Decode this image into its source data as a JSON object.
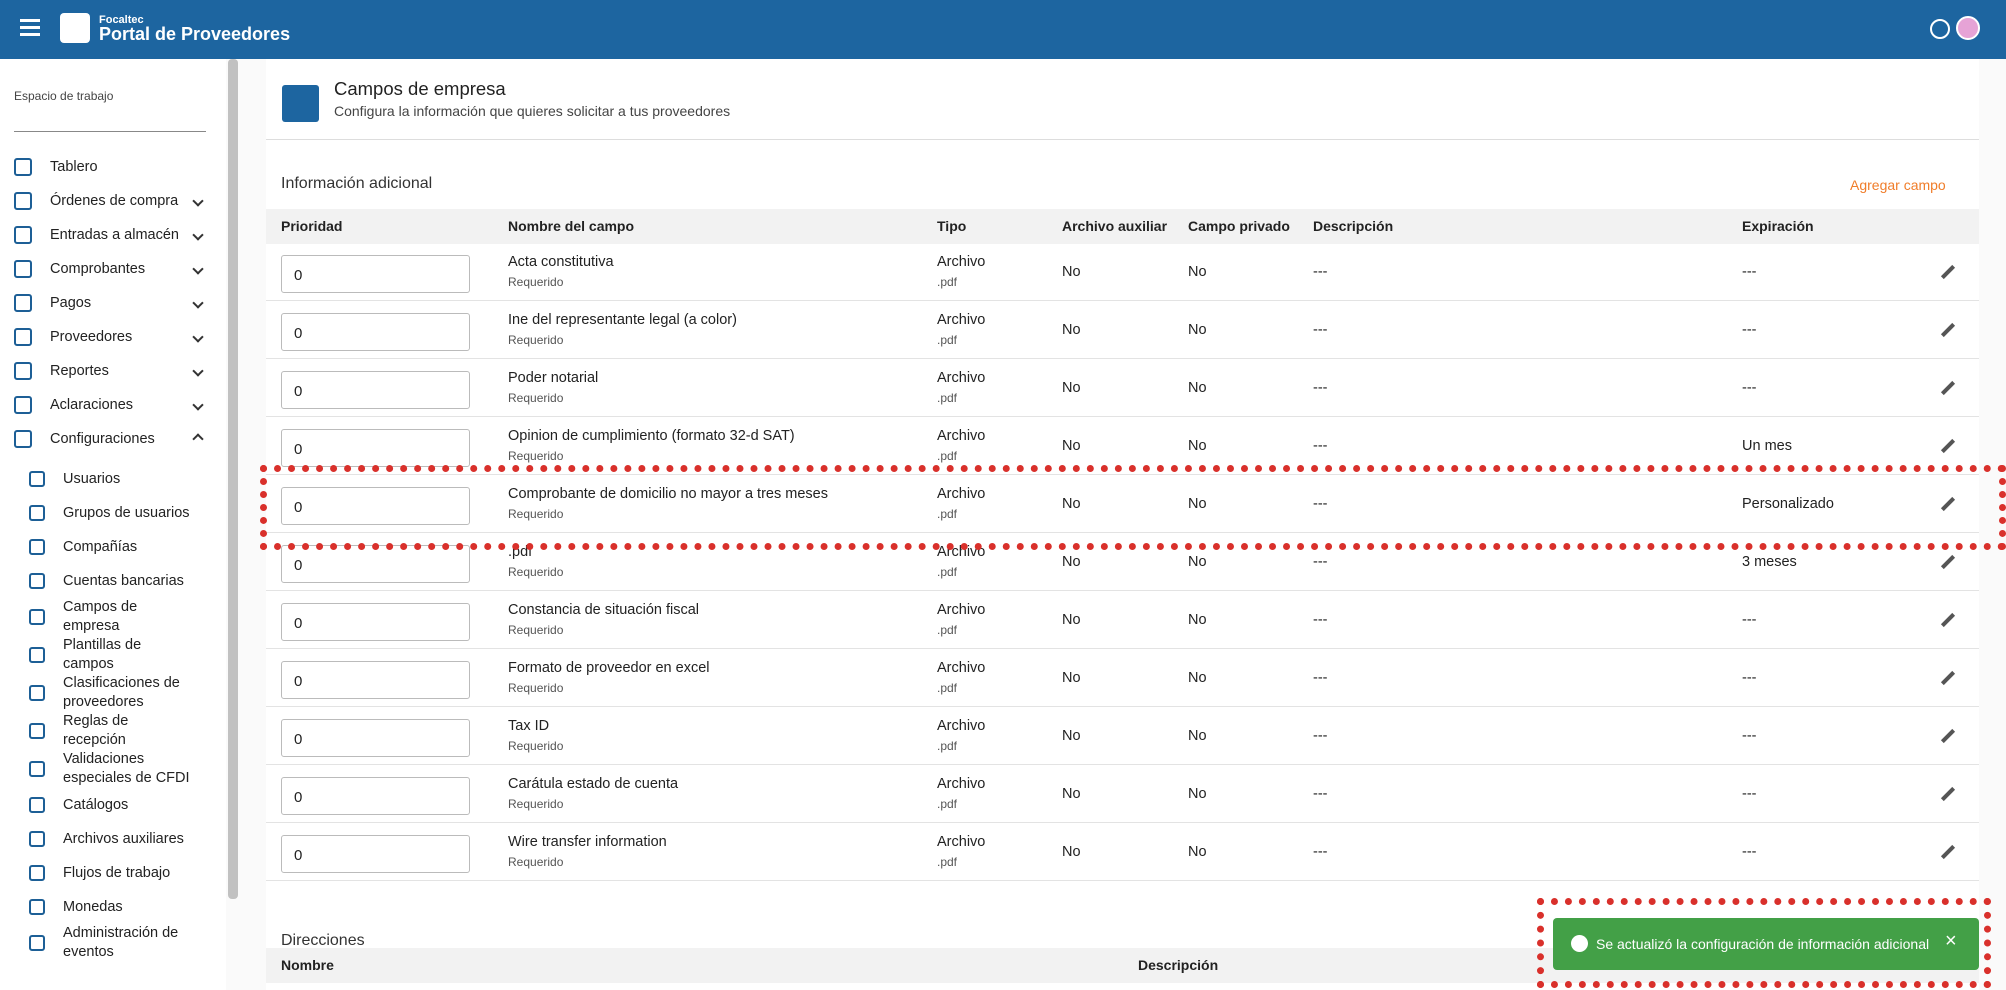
{
  "header": {
    "brand_small": "Focaltec",
    "brand": "Portal de Proveedores"
  },
  "sidebar": {
    "workspace_label": "Espacio de trabajo",
    "items": [
      {
        "label": "Tablero",
        "has_children": false
      },
      {
        "label": "Órdenes de compra",
        "has_children": true
      },
      {
        "label": "Entradas a almacén",
        "has_children": true
      },
      {
        "label": "Comprobantes",
        "has_children": true
      },
      {
        "label": "Pagos",
        "has_children": true
      },
      {
        "label": "Proveedores",
        "has_children": true
      },
      {
        "label": "Reportes",
        "has_children": true
      },
      {
        "label": "Aclaraciones",
        "has_children": true
      },
      {
        "label": "Configuraciones",
        "has_children": true,
        "expanded": true
      }
    ],
    "subitems": [
      "Usuarios",
      "Grupos de usuarios",
      "Compañías",
      "Cuentas bancarias",
      "Campos de empresa",
      "Plantillas de campos",
      "Clasificaciones de proveedores",
      "Reglas de recepción",
      "Validaciones especiales de CFDI",
      "Catálogos",
      "Archivos auxiliares",
      "Flujos de trabajo",
      "Monedas",
      "Administración de eventos"
    ]
  },
  "page": {
    "title": "Campos de empresa",
    "subtitle": "Configura la información que quieres solicitar a tus proveedores"
  },
  "section": {
    "title": "Información adicional",
    "add_button": "Agregar campo",
    "columns": [
      "Prioridad",
      "Nombre del campo",
      "Tipo",
      "Archivo auxiliar",
      "Campo privado",
      "Descripción",
      "Expiración"
    ],
    "rows": [
      {
        "priority": "0",
        "name": "Acta constitutiva",
        "required": "Requerido",
        "type": "Archivo",
        "ext": ".pdf",
        "aux": "No",
        "private": "No",
        "description": "---",
        "expiration": "---"
      },
      {
        "priority": "0",
        "name": "Ine del representante legal (a color)",
        "required": "Requerido",
        "type": "Archivo",
        "ext": ".pdf",
        "aux": "No",
        "private": "No",
        "description": "---",
        "expiration": "---"
      },
      {
        "priority": "0",
        "name": "Poder notarial",
        "required": "Requerido",
        "type": "Archivo",
        "ext": ".pdf",
        "aux": "No",
        "private": "No",
        "description": "---",
        "expiration": "---"
      },
      {
        "priority": "0",
        "name": "Opinion de cumplimiento (formato 32-d SAT)",
        "required": "Requerido",
        "type": "Archivo",
        "ext": ".pdf",
        "aux": "No",
        "private": "No",
        "description": "---",
        "expiration": "Un mes"
      },
      {
        "priority": "0",
        "name": "Comprobante de domicilio no mayor a tres meses",
        "required": "Requerido",
        "type": "Archivo",
        "ext": ".pdf",
        "aux": "No",
        "private": "No",
        "description": "---",
        "expiration": "Personalizado"
      },
      {
        "priority": "0",
        "name": ".pdf",
        "required": "Requerido",
        "type": "Archivo",
        "ext": ".pdf",
        "aux": "No",
        "private": "No",
        "description": "---",
        "expiration": "3 meses"
      },
      {
        "priority": "0",
        "name": "Constancia de situación fiscal",
        "required": "Requerido",
        "type": "Archivo",
        "ext": ".pdf",
        "aux": "No",
        "private": "No",
        "description": "---",
        "expiration": "---"
      },
      {
        "priority": "0",
        "name": "Formato de proveedor en excel",
        "required": "Requerido",
        "type": "Archivo",
        "ext": ".pdf",
        "aux": "No",
        "private": "No",
        "description": "---",
        "expiration": "---"
      },
      {
        "priority": "0",
        "name": "Tax ID",
        "required": "Requerido",
        "type": "Archivo",
        "ext": ".pdf",
        "aux": "No",
        "private": "No",
        "description": "---",
        "expiration": "---"
      },
      {
        "priority": "0",
        "name": "Carátula estado de cuenta",
        "required": "Requerido",
        "type": "Archivo",
        "ext": ".pdf",
        "aux": "No",
        "private": "No",
        "description": "---",
        "expiration": "---"
      },
      {
        "priority": "0",
        "name": "Wire transfer information",
        "required": "Requerido",
        "type": "Archivo",
        "ext": ".pdf",
        "aux": "No",
        "private": "No",
        "description": "---",
        "expiration": "---"
      }
    ]
  },
  "addresses": {
    "title": "Direcciones",
    "columns": [
      "Nombre",
      "Descripción"
    ]
  },
  "toast": {
    "message": "Se actualizó la configuración de información adicional"
  }
}
